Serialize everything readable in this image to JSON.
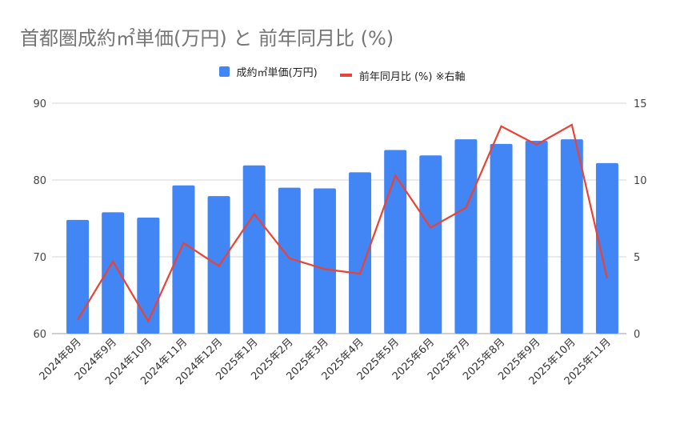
{
  "chart_data": {
    "type": "bar",
    "title": "首都圏成約㎡単価(万円) と 前年同月比 (%)",
    "categories": [
      "2024年8月",
      "2024年9月",
      "2024年10月",
      "2024年11月",
      "2024年12月",
      "2025年1月",
      "2025年2月",
      "2025年3月",
      "2025年4月",
      "2025年5月",
      "2025年6月",
      "2025年7月",
      "2025年8月",
      "2025年9月",
      "2025年10月",
      "2025年11月"
    ],
    "series": [
      {
        "name": "成約㎡単価(万円)",
        "type": "bar",
        "axis": "left",
        "color": "#4285f4",
        "values": [
          74.8,
          75.8,
          75.1,
          79.3,
          77.9,
          81.9,
          79.0,
          78.9,
          81.0,
          83.9,
          83.2,
          85.3,
          84.7,
          85.1,
          85.3,
          82.2
        ]
      },
      {
        "name": "前年同月比 (%) ※右軸",
        "type": "line",
        "axis": "right",
        "color": "#ea4335",
        "values": [
          0.9,
          4.7,
          0.8,
          5.9,
          4.4,
          7.8,
          4.9,
          4.2,
          3.9,
          10.3,
          6.9,
          8.2,
          13.5,
          12.3,
          13.6,
          3.6
        ]
      }
    ],
    "left_axis": {
      "range": [
        60,
        90
      ],
      "ticks": [
        "60",
        "70",
        "80",
        "90"
      ]
    },
    "right_axis": {
      "range": [
        0,
        15
      ],
      "ticks": [
        "0",
        "5",
        "10",
        "15"
      ]
    },
    "grid": true,
    "legend_position": "top"
  }
}
